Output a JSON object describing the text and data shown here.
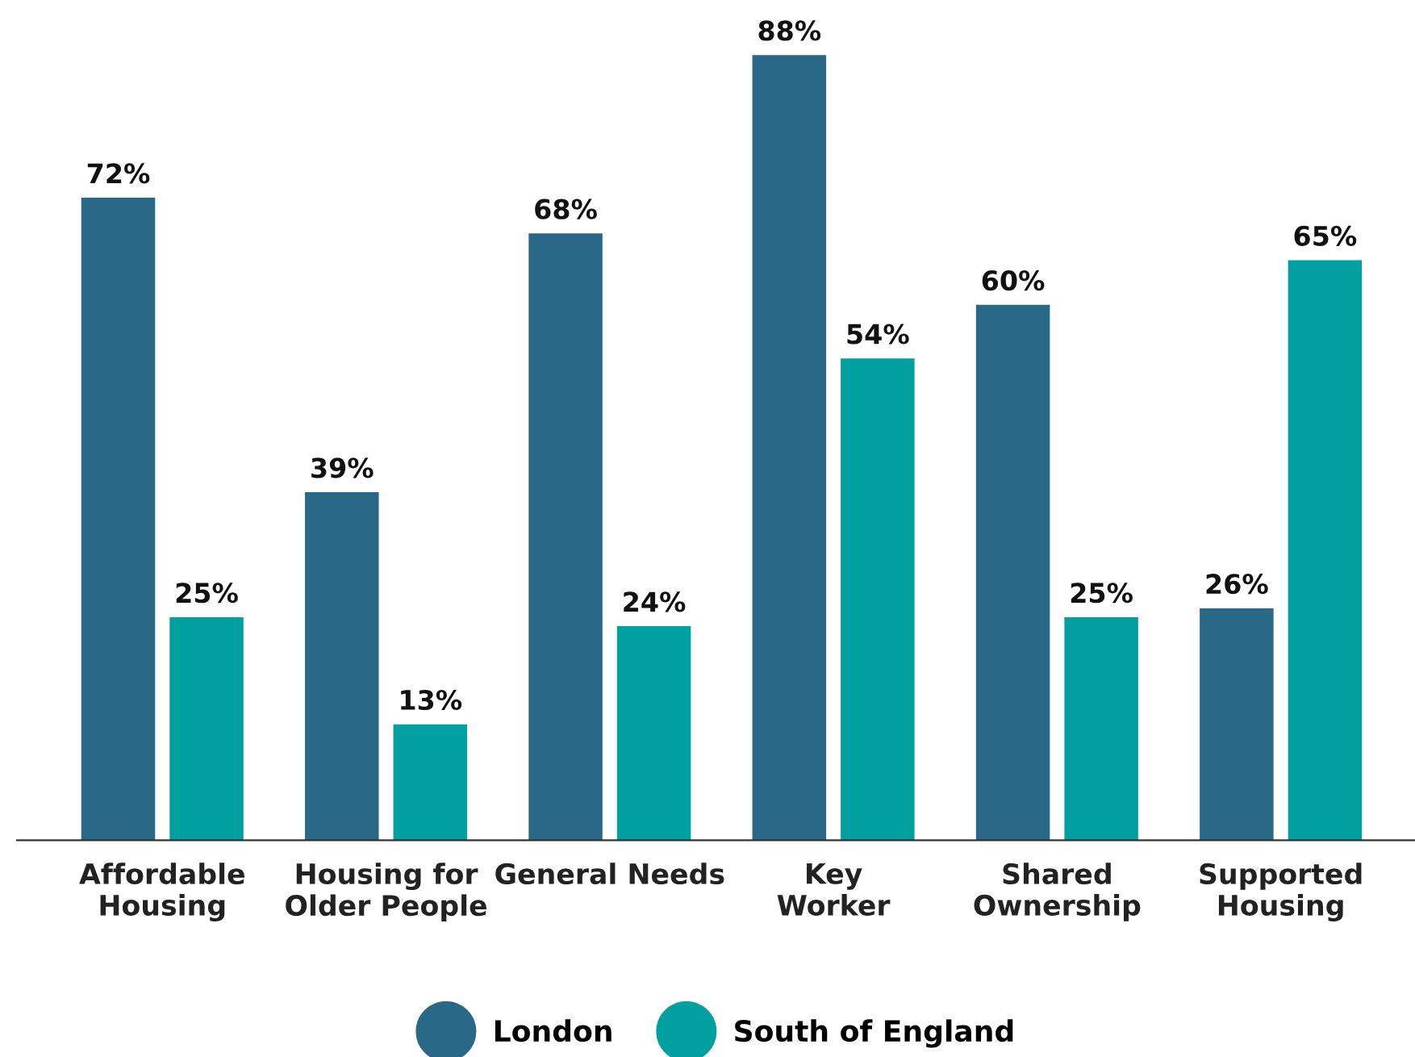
{
  "chart_data": {
    "type": "bar",
    "categories": [
      "Affordable\nHousing",
      "Housing for\nOlder People",
      "General Needs",
      "Key\nWorker",
      "Shared\nOwnership",
      "Supported\nHousing"
    ],
    "series": [
      {
        "name": "London",
        "color": "#2a6887",
        "values": [
          72,
          39,
          68,
          88,
          60,
          26
        ],
        "value_labels": [
          "72%",
          "39%",
          "68%",
          "88%",
          "60%",
          "26%"
        ]
      },
      {
        "name": "South of England",
        "color": "#00a0a0",
        "values": [
          25,
          13,
          24,
          54,
          25,
          65
        ],
        "value_labels": [
          "25%",
          "13%",
          "24%",
          "54%",
          "25%",
          "65%"
        ]
      }
    ],
    "legend": "bottom",
    "grid": false,
    "tick_labels": "x"
  }
}
